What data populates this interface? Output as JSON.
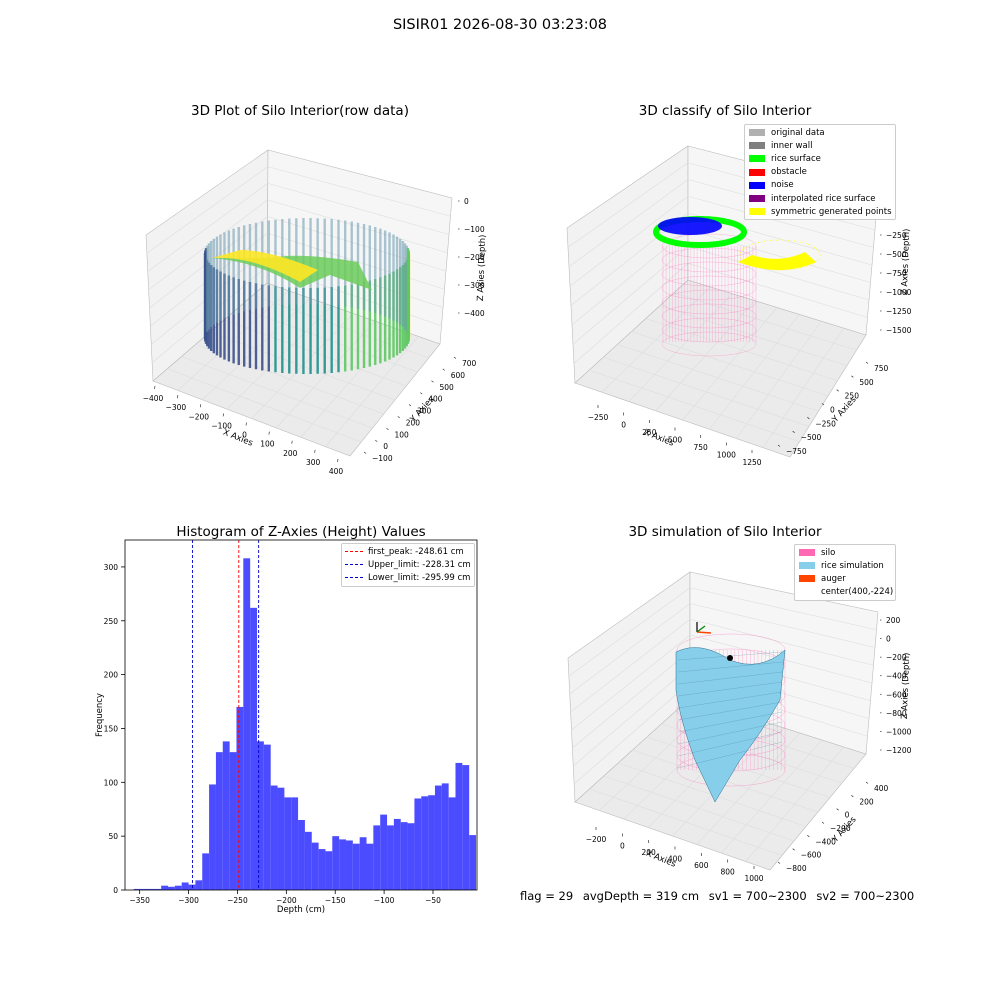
{
  "suptitle": "SISIR01 2026-08-30 03:23:08",
  "colors": {
    "histogram_bar": "#4b4bff",
    "first_peak_line": "#ff0000",
    "limit_line": "#0000cc",
    "silo_wire": "#ff69b4",
    "rice_surface": "#87ceeb",
    "auger": "#ff4500"
  },
  "panels": {
    "raw": {
      "title": "3D Plot of Silo Interior(row data)",
      "x_label": "X Axies",
      "y_label": "Y Axies",
      "z_label": "Z Axies (Depth)",
      "x_ticks": [
        "−400",
        "−300",
        "−200",
        "−100",
        "0",
        "100",
        "200",
        "300",
        "400"
      ],
      "y_ticks": [
        "−100",
        "0",
        "100",
        "200",
        "300",
        "400",
        "500",
        "600",
        "700"
      ],
      "z_ticks": [
        "0",
        "−100",
        "−200",
        "−300",
        "−400"
      ]
    },
    "classify": {
      "title": "3D classify of Silo Interior",
      "x_label": "X Axies",
      "y_label": "Y Axies",
      "z_label": "Z Axies (Depth)",
      "x_ticks": [
        "−250",
        "0",
        "250",
        "500",
        "750",
        "1000",
        "1250"
      ],
      "y_ticks": [
        "−750",
        "−500",
        "−250",
        "0",
        "250",
        "500",
        "750"
      ],
      "z_ticks": [
        "0",
        "−250",
        "−500",
        "−750",
        "−1000",
        "−1250",
        "−1500"
      ],
      "legend": [
        {
          "label": "original data",
          "color": "#b0b0b0"
        },
        {
          "label": "inner wall",
          "color": "#808080"
        },
        {
          "label": "rice surface",
          "color": "#00ff00"
        },
        {
          "label": "obstacle",
          "color": "#ff0000"
        },
        {
          "label": "noise",
          "color": "#0000ff"
        },
        {
          "label": "interpolated rice surface",
          "color": "#800080"
        },
        {
          "label": "symmetric generated points",
          "color": "#ffff00"
        }
      ]
    },
    "simulation": {
      "title": "3D simulation of Silo Interior",
      "x_label": "X Axies",
      "y_label": "Y Axies",
      "z_label": "Z Axies (Depth)",
      "x_ticks": [
        "−200",
        "0",
        "200",
        "400",
        "600",
        "800",
        "1000"
      ],
      "y_ticks": [
        "−800",
        "−600",
        "−400",
        "−200",
        "0",
        "200",
        "400"
      ],
      "z_ticks": [
        "200",
        "0",
        "−200",
        "−400",
        "−600",
        "−800",
        "−1000",
        "−1200"
      ],
      "legend": [
        {
          "label": "silo",
          "color": "#ff69b4"
        },
        {
          "label": "rice simulation",
          "color": "#87ceeb"
        },
        {
          "label": "auger",
          "color": "#ff4500"
        },
        {
          "label": "center(400,-224)",
          "color": ""
        }
      ]
    }
  },
  "footer": {
    "flag": "flag = 29",
    "avg_depth": "avgDepth = 319 cm",
    "sv1": "sv1 = 700~2300",
    "sv2": "sv2 = 700~2300"
  },
  "chart_data": {
    "type": "bar",
    "title": "Histogram of Z-Axies (Height) Values",
    "xlabel": "Depth (cm)",
    "ylabel": "Frequency",
    "xlim": [
      -365,
      -5
    ],
    "ylim": [
      0,
      325
    ],
    "x_ticks": [
      -350,
      -300,
      -250,
      -200,
      -150,
      -100,
      -50
    ],
    "y_ticks": [
      0,
      50,
      100,
      150,
      200,
      250,
      300
    ],
    "bin_width": 7.0,
    "bin_start": -356.0,
    "values": [
      1,
      1,
      1,
      1,
      4,
      3,
      4,
      7,
      5,
      9,
      34,
      98,
      128,
      138,
      128,
      170,
      308,
      262,
      138,
      135,
      97,
      95,
      86,
      86,
      65,
      54,
      44,
      38,
      36,
      50,
      47,
      46,
      43,
      49,
      43,
      60,
      70,
      60,
      66,
      63,
      62,
      85,
      87,
      88,
      97,
      99,
      86,
      118,
      116,
      51
    ],
    "legend": [
      {
        "label": "first_peak: -248.61 cm",
        "value": -248.61,
        "color": "#ff0000"
      },
      {
        "label": "Upper_limit: -228.31 cm",
        "value": -228.31,
        "color": "#0000cc"
      },
      {
        "label": "Lower_limit: -295.99 cm",
        "value": -295.99,
        "color": "#0000cc"
      }
    ]
  }
}
